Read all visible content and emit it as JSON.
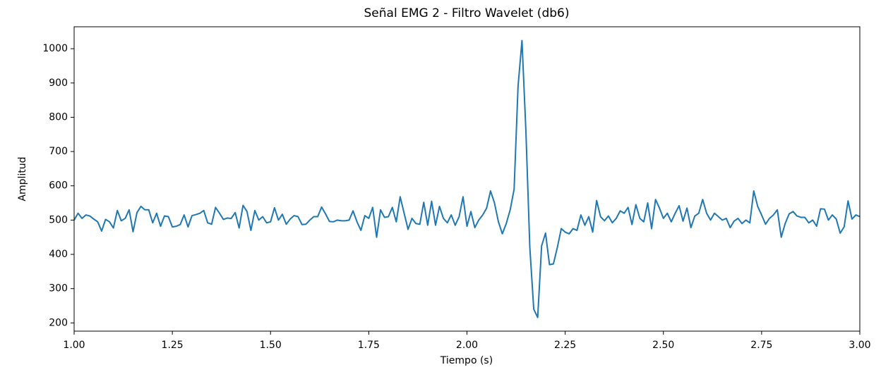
{
  "chart_data": {
    "type": "line",
    "title": "Señal EMG 2 - Filtro Wavelet (db6)",
    "xlabel": "Tiempo (s)",
    "ylabel": "Amplitud",
    "xlim": [
      1.0,
      3.0
    ],
    "ylim": [
      176,
      1064
    ],
    "xticks": [
      {
        "value": 1.0,
        "label": "1.00"
      },
      {
        "value": 1.25,
        "label": "1.25"
      },
      {
        "value": 1.5,
        "label": "1.50"
      },
      {
        "value": 1.75,
        "label": "1.75"
      },
      {
        "value": 2.0,
        "label": "2.00"
      },
      {
        "value": 2.25,
        "label": "2.25"
      },
      {
        "value": 2.5,
        "label": "2.50"
      },
      {
        "value": 2.75,
        "label": "2.75"
      },
      {
        "value": 3.0,
        "label": "3.00"
      }
    ],
    "yticks": [
      200,
      300,
      400,
      500,
      600,
      700,
      800,
      900,
      1000
    ],
    "grid": false,
    "x": [
      1.0,
      1.01,
      1.02,
      1.03,
      1.04,
      1.05,
      1.06,
      1.07,
      1.08,
      1.09,
      1.1,
      1.11,
      1.12,
      1.13,
      1.14,
      1.15,
      1.16,
      1.17,
      1.18,
      1.19,
      1.2,
      1.21,
      1.22,
      1.23,
      1.24,
      1.25,
      1.26,
      1.27,
      1.28,
      1.29,
      1.3,
      1.31,
      1.32,
      1.33,
      1.34,
      1.35,
      1.36,
      1.37,
      1.38,
      1.39,
      1.4,
      1.41,
      1.42,
      1.43,
      1.44,
      1.45,
      1.46,
      1.47,
      1.48,
      1.49,
      1.5,
      1.51,
      1.52,
      1.53,
      1.54,
      1.55,
      1.56,
      1.57,
      1.58,
      1.59,
      1.6,
      1.61,
      1.62,
      1.63,
      1.64,
      1.65,
      1.66,
      1.67,
      1.68,
      1.69,
      1.7,
      1.71,
      1.72,
      1.73,
      1.74,
      1.75,
      1.76,
      1.77,
      1.78,
      1.79,
      1.8,
      1.81,
      1.82,
      1.83,
      1.84,
      1.85,
      1.86,
      1.87,
      1.88,
      1.89,
      1.9,
      1.91,
      1.92,
      1.93,
      1.94,
      1.95,
      1.96,
      1.97,
      1.98,
      1.99,
      2.0,
      2.01,
      2.02,
      2.03,
      2.04,
      2.05,
      2.06,
      2.07,
      2.08,
      2.09,
      2.1,
      2.11,
      2.12,
      2.13,
      2.14,
      2.15,
      2.16,
      2.17,
      2.18,
      2.19,
      2.2,
      2.21,
      2.22,
      2.23,
      2.24,
      2.25,
      2.26,
      2.27,
      2.28,
      2.29,
      2.3,
      2.31,
      2.32,
      2.33,
      2.34,
      2.35,
      2.36,
      2.37,
      2.38,
      2.39,
      2.4,
      2.41,
      2.42,
      2.43,
      2.44,
      2.45,
      2.46,
      2.47,
      2.48,
      2.49,
      2.5,
      2.51,
      2.52,
      2.53,
      2.54,
      2.55,
      2.56,
      2.57,
      2.58,
      2.59,
      2.6,
      2.61,
      2.62,
      2.63,
      2.64,
      2.65,
      2.66,
      2.67,
      2.68,
      2.69,
      2.7,
      2.71,
      2.72,
      2.73,
      2.74,
      2.75,
      2.76,
      2.77,
      2.78,
      2.79,
      2.8,
      2.81,
      2.82,
      2.83,
      2.84,
      2.85,
      2.86,
      2.87,
      2.88,
      2.89,
      2.9,
      2.91,
      2.92,
      2.93,
      2.94,
      2.95,
      2.96,
      2.97,
      2.98,
      2.99,
      3.0
    ],
    "series": [
      {
        "color": "#1f77b4",
        "values": [
          500,
          520,
          505,
          515,
          512,
          503,
          495,
          468,
          502,
          495,
          477,
          528,
          498,
          505,
          530,
          466,
          522,
          540,
          530,
          530,
          492,
          520,
          482,
          512,
          510,
          480,
          482,
          487,
          515,
          480,
          513,
          516,
          520,
          528,
          492,
          488,
          537,
          520,
          502,
          506,
          505,
          522,
          477,
          543,
          525,
          470,
          528,
          500,
          510,
          492,
          495,
          536,
          500,
          517,
          488,
          503,
          513,
          510,
          487,
          488,
          500,
          510,
          510,
          538,
          518,
          496,
          495,
          500,
          498,
          498,
          500,
          527,
          495,
          470,
          513,
          505,
          537,
          450,
          530,
          508,
          510,
          537,
          495,
          568,
          520,
          473,
          505,
          490,
          488,
          552,
          485,
          555,
          485,
          540,
          505,
          492,
          515,
          485,
          510,
          568,
          482,
          525,
          478,
          500,
          515,
          535,
          585,
          550,
          495,
          460,
          490,
          530,
          590,
          890,
          1024,
          760,
          420,
          240,
          216,
          425,
          462,
          370,
          372,
          420,
          475,
          465,
          460,
          475,
          470,
          515,
          485,
          510,
          465,
          557,
          510,
          498,
          512,
          492,
          505,
          527,
          520,
          537,
          487,
          545,
          505,
          495,
          550,
          475,
          560,
          535,
          505,
          520,
          495,
          520,
          542,
          497,
          535,
          478,
          512,
          520,
          560,
          520,
          500,
          520,
          510,
          500,
          505,
          478,
          497,
          505,
          490,
          500,
          492,
          585,
          540,
          515,
          488,
          505,
          515,
          530,
          450,
          490,
          518,
          525,
          512,
          508,
          508,
          492,
          500,
          482,
          533,
          532,
          500,
          515,
          503,
          462,
          480,
          556,
          503,
          515,
          510
        ]
      }
    ]
  }
}
